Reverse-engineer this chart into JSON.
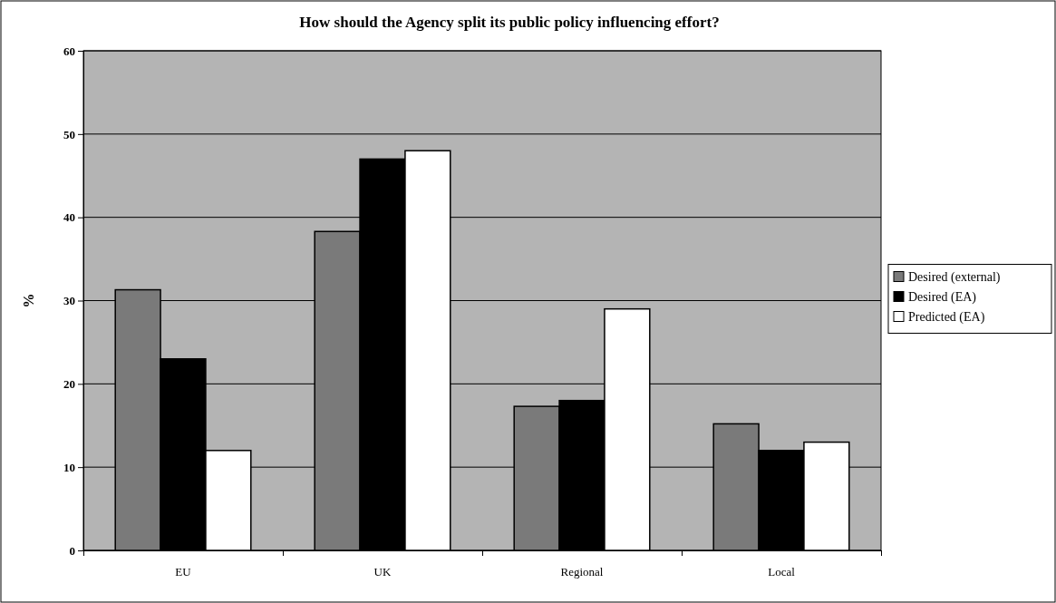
{
  "chart_data": {
    "type": "bar",
    "title": "How should the Agency split its public policy influencing effort?",
    "ylabel": "%",
    "categories": [
      "EU",
      "UK",
      "Regional",
      "Local"
    ],
    "series": [
      {
        "name": "Desired (external)",
        "color": "#7a7a7a",
        "values": [
          31.3,
          38.3,
          17.3,
          15.2
        ]
      },
      {
        "name": "Desired (EA)",
        "color": "#000000",
        "values": [
          23,
          47,
          18,
          12
        ]
      },
      {
        "name": "Predicted (EA)",
        "color": "#ffffff",
        "values": [
          12,
          48,
          29,
          13
        ]
      }
    ],
    "ylim": [
      0,
      60
    ],
    "yticks": [
      0,
      10,
      20,
      30,
      40,
      50,
      60
    ],
    "grid": "y",
    "legend": "right"
  }
}
